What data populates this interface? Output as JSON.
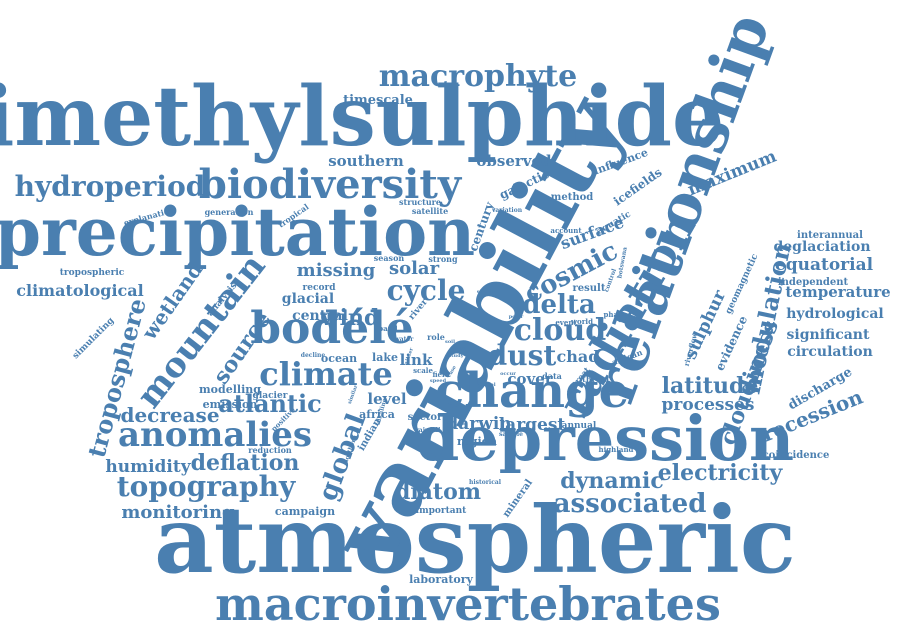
{
  "cloud": {
    "color": "#4a7fb0",
    "words": [
      {
        "text": "atmospheric",
        "size": 200
      },
      {
        "text": "variability",
        "size": 150
      },
      {
        "text": "dimethylsulphide",
        "size": 190
      },
      {
        "text": "precipitation",
        "size": 150
      },
      {
        "text": "relationship",
        "size": 120
      },
      {
        "text": "depression",
        "size": 130
      },
      {
        "text": "macroinvertebrates",
        "size": 120
      },
      {
        "text": "change",
        "size": 90
      },
      {
        "text": "biodiversity",
        "size": 80
      },
      {
        "text": "radiation",
        "size": 80
      },
      {
        "text": "bodélé",
        "size": 80
      },
      {
        "text": "mountain",
        "size": 60
      },
      {
        "text": "climate",
        "size": 60
      },
      {
        "text": "macrophyte",
        "size": 55
      },
      {
        "text": "hydroperiod",
        "size": 55
      },
      {
        "text": "anomalies",
        "size": 55
      },
      {
        "text": "topography",
        "size": 50
      },
      {
        "text": "cloud",
        "size": 50
      },
      {
        "text": "dust",
        "size": 48
      },
      {
        "text": "cycle",
        "size": 45
      },
      {
        "text": "delta",
        "size": 42
      },
      {
        "text": "cosmic",
        "size": 42
      },
      {
        "text": "associated",
        "size": 42
      },
      {
        "text": "dynamic",
        "size": 38
      },
      {
        "text": "troposphere",
        "size": 40
      },
      {
        "text": "global",
        "size": 38
      },
      {
        "text": "modulation",
        "size": 38
      },
      {
        "text": "atlantic",
        "size": 38
      },
      {
        "text": "cloudiness",
        "size": 35
      },
      {
        "text": "latitude",
        "size": 35
      },
      {
        "text": "diatom",
        "size": 35
      },
      {
        "text": "electricity",
        "size": 32
      },
      {
        "text": "deflation",
        "size": 32
      },
      {
        "text": "wind",
        "size": 32
      },
      {
        "text": "source",
        "size": 32
      },
      {
        "text": "wetland",
        "size": 30
      },
      {
        "text": "recession",
        "size": 30
      },
      {
        "text": "decrease",
        "size": 28
      },
      {
        "text": "monitoring",
        "size": 28
      },
      {
        "text": "solar",
        "size": 27
      },
      {
        "text": "missing",
        "size": 27
      },
      {
        "text": "sulphur",
        "size": 26
      },
      {
        "text": "surface",
        "size": 26
      },
      {
        "text": "chad",
        "size": 26
      },
      {
        "text": "humidity",
        "size": 26
      },
      {
        "text": "maximum",
        "size": 25
      },
      {
        "text": "equatorial",
        "size": 25
      },
      {
        "text": "processes",
        "size": 25
      },
      {
        "text": "largest",
        "size": 25
      },
      {
        "text": "darwin",
        "size": 25
      },
      {
        "text": "cover",
        "size": 24
      },
      {
        "text": "level",
        "size": 24
      },
      {
        "text": "link",
        "size": 24
      },
      {
        "text": "climatological",
        "size": 24
      },
      {
        "text": "southern",
        "size": 23
      },
      {
        "text": "observed",
        "size": 23
      },
      {
        "text": "temperature",
        "size": 23
      },
      {
        "text": "deglaciation",
        "size": 22
      },
      {
        "text": "circulation",
        "size": 22
      },
      {
        "text": "significant",
        "size": 22
      },
      {
        "text": "hydrological",
        "size": 22
      },
      {
        "text": "glacial",
        "size": 22
      },
      {
        "text": "central",
        "size": 22
      },
      {
        "text": "discharge",
        "size": 20
      },
      {
        "text": "timescale",
        "size": 20
      },
      {
        "text": "evidence",
        "size": 18
      },
      {
        "text": "century",
        "size": 18
      },
      {
        "text": "galactic",
        "size": 18
      },
      {
        "text": "icefields",
        "size": 18
      },
      {
        "text": "influence",
        "size": 17
      },
      {
        "text": "result",
        "size": 17
      },
      {
        "text": "method",
        "size": 17
      },
      {
        "text": "region",
        "size": 18
      },
      {
        "text": "campaign",
        "size": 17
      },
      {
        "text": "modelling",
        "size": 17
      },
      {
        "text": "emission",
        "size": 17
      },
      {
        "text": "ocean",
        "size": 17
      },
      {
        "text": "lake",
        "size": 17
      },
      {
        "text": "africa",
        "size": 17
      },
      {
        "text": "sector",
        "size": 16
      },
      {
        "text": "indian",
        "size": 16
      },
      {
        "text": "mineral",
        "size": 16
      },
      {
        "text": "coincidence",
        "size": 15
      },
      {
        "text": "independent",
        "size": 15
      },
      {
        "text": "interannual",
        "size": 15
      },
      {
        "text": "geomagnetic",
        "size": 14
      },
      {
        "text": "aquatic",
        "size": 14
      },
      {
        "text": "annual",
        "size": 14
      },
      {
        "text": "laboratory",
        "size": 15
      },
      {
        "text": "important",
        "size": 14
      },
      {
        "text": "glacier",
        "size": 14
      },
      {
        "text": "analysis",
        "size": 14
      },
      {
        "text": "simulating",
        "size": 14
      },
      {
        "text": "tropospheric",
        "size": 14
      },
      {
        "text": "explanation",
        "size": 13
      },
      {
        "text": "generation",
        "size": 13
      },
      {
        "text": "tropical",
        "size": 13
      },
      {
        "text": "structure",
        "size": 13
      },
      {
        "text": "satellite",
        "size": 13
      },
      {
        "text": "season",
        "size": 13
      },
      {
        "text": "strong",
        "size": 13
      },
      {
        "text": "record",
        "size": 14
      },
      {
        "text": "reduction",
        "size": 13
      },
      {
        "text": "positive",
        "size": 12
      },
      {
        "text": "highland",
        "size": 12
      },
      {
        "text": "phase",
        "size": 12
      },
      {
        "text": "event",
        "size": 12
      },
      {
        "text": "world",
        "size": 12
      },
      {
        "text": "account",
        "size": 12
      },
      {
        "text": "african",
        "size": 12
      },
      {
        "text": "threat",
        "size": 12
      },
      {
        "text": "retreat",
        "size": 12
      },
      {
        "text": "data",
        "size": 12
      },
      {
        "text": "role",
        "size": 12
      },
      {
        "text": "field",
        "size": 12
      },
      {
        "text": "band",
        "size": 12
      },
      {
        "text": "scale",
        "size": 12
      },
      {
        "text": "water",
        "size": 11
      },
      {
        "text": "decline",
        "size": 11
      },
      {
        "text": "rainfall",
        "size": 11
      },
      {
        "text": "sample",
        "size": 11
      },
      {
        "text": "historical",
        "size": 11
      },
      {
        "text": "variation",
        "size": 11
      },
      {
        "text": "botswana",
        "size": 11
      },
      {
        "text": "riverflow",
        "size": 11
      },
      {
        "text": "control",
        "size": 11
      },
      {
        "text": "term",
        "size": 10
      },
      {
        "text": "northern",
        "size": 10
      },
      {
        "text": "simple",
        "size": 10
      },
      {
        "text": "alkaline",
        "size": 10
      },
      {
        "text": "similar",
        "size": 10
      },
      {
        "text": "river",
        "size": 14
      },
      {
        "text": "occur",
        "size": 10
      },
      {
        "text": "model",
        "size": 9
      },
      {
        "text": "speed",
        "size": 9
      },
      {
        "text": "earth",
        "size": 9
      },
      {
        "text": "soil",
        "size": 9
      },
      {
        "text": "study",
        "size": 9
      },
      {
        "text": "polar",
        "size": 9
      },
      {
        "text": "case",
        "size": 8
      },
      {
        "text": "winter",
        "size": 8
      }
    ]
  }
}
